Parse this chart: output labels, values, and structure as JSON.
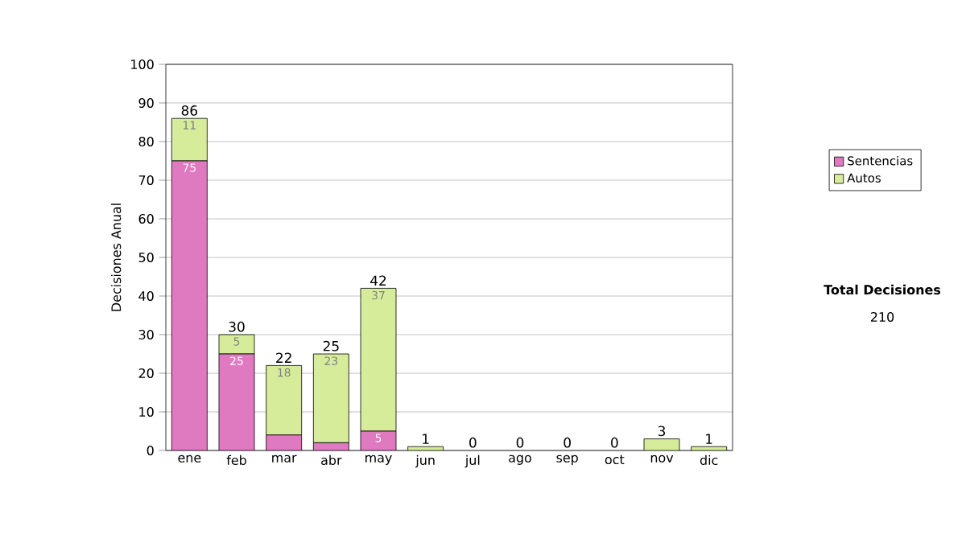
{
  "chart_data": {
    "type": "bar",
    "stacked": true,
    "ylabel": "Decisiones Anual",
    "categories": [
      "ene",
      "feb",
      "mar",
      "abr",
      "may",
      "jun",
      "jul",
      "ago",
      "sep",
      "oct",
      "nov",
      "dic"
    ],
    "series": [
      {
        "name": "Sentencias",
        "color": "#e07ac0",
        "values": [
          75,
          25,
          4,
          2,
          5,
          0,
          0,
          0,
          0,
          0,
          0,
          0
        ],
        "value_labels": [
          "75",
          "25",
          null,
          null,
          "5",
          null,
          null,
          null,
          null,
          null,
          null,
          null
        ]
      },
      {
        "name": "Autos",
        "color": "#d6ec9a",
        "values": [
          11,
          5,
          18,
          23,
          37,
          1,
          0,
          0,
          0,
          0,
          3,
          1
        ],
        "value_labels": [
          "11",
          "5",
          "18",
          "23",
          "37",
          null,
          null,
          null,
          null,
          null,
          null,
          null
        ]
      }
    ],
    "totals": [
      "86",
      "30",
      "22",
      "25",
      "42",
      "1",
      "0",
      "0",
      "0",
      "0",
      "3",
      "1"
    ],
    "ylim": [
      0,
      100
    ],
    "yticks": [
      0,
      10,
      20,
      30,
      40,
      50,
      60,
      70,
      80,
      90,
      100
    ],
    "grid": "y",
    "legend": "right",
    "annotations": [
      "Total Decisiones",
      "210"
    ]
  }
}
